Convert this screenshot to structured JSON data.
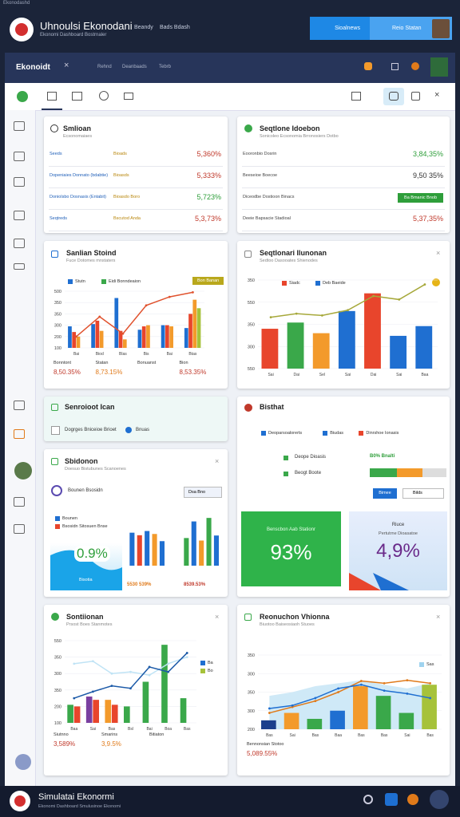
{
  "top": {
    "status": "Ekonodashd",
    "title": "Uhnoulsi Ekonodani",
    "subtitle": "Ekonomi Dashboard Bostrnaler",
    "nav": [
      "Beandy",
      "Bads Bdash"
    ],
    "buttons": [
      "Sioalnews",
      "Reio Statan"
    ]
  },
  "window": {
    "title": "Ekonoidt",
    "tabs": [
      "Rehnd",
      "Deanbaads",
      "Tebrb"
    ]
  },
  "cards": {
    "smlioan": {
      "title": "Smlioan",
      "subtitle": "Ecsonomaiaes",
      "rows": [
        {
          "label": "Seeds",
          "tag": "Bioads",
          "value": "5,360%",
          "color": "#c0392b"
        },
        {
          "label": "Dopeniaies Donnato (bdabtie)",
          "tag": "Bioasds",
          "value": "5,333%",
          "color": "#c0392b"
        },
        {
          "label": "Doniolsbo Dosnasis (Entabit)",
          "tag": "Bioasdo Boro",
          "value": "5,723%",
          "color": "#2e9e3a"
        },
        {
          "label": "Seqtreds",
          "tag": "Bscutod Anda",
          "value": "5,3,73%",
          "color": "#c0392b"
        }
      ]
    },
    "idoebon": {
      "title": "Seqtlone Idoebon",
      "subtitle": "Sonicoleo Ecsonomia Brronosiers Dotbo",
      "rows": [
        {
          "label": "Eooronbio Dosrin",
          "value": "3,84,35%",
          "color": "#2e9e3a"
        },
        {
          "label": "Beeseioe Boecoe",
          "value": "9,50 35%",
          "color": "#333333"
        },
        {
          "label": "Diceodbe Dostioon Binacs",
          "value": "Ba Bmanic Bnob",
          "color": "#ffffff",
          "bg": "#2e9e3a"
        },
        {
          "label": "Deeie Bapsacie Stadioal",
          "value": "5,37,35%",
          "color": "#c0392b"
        }
      ]
    },
    "stoind": {
      "title": "Sanlian Stoind",
      "subtitle": "Fuce Dotomes mnstaters",
      "legend": [
        {
          "name": "Stutn",
          "color": "#1f6fd1"
        },
        {
          "name": "Eidi Bonndeaion",
          "color": "#3aa84a"
        }
      ],
      "badge": "Bon Banan",
      "chart": {
        "ylim": [
          0,
          100
        ],
        "ylabels": [
          "500",
          "350",
          "350",
          "300",
          "200",
          "100"
        ],
        "categories": [
          "Bai",
          "Biod",
          "Blas",
          "Bis",
          "Bai",
          "Btas"
        ],
        "bars": [
          {
            "color": "#1f6fd1",
            "values": [
              38,
              42,
              88,
              32,
              40,
              35
            ]
          },
          {
            "color": "#e8452c",
            "values": [
              28,
              48,
              30,
              38,
              40,
              60
            ]
          },
          {
            "color": "#f39a2b",
            "values": [
              20,
              30,
              15,
              40,
              38,
              85
            ]
          },
          {
            "color": "#a6c23a",
            "values": [
              0,
              0,
              0,
              0,
              0,
              70
            ]
          }
        ],
        "lines": [
          {
            "color": "#e0522e",
            "values": [
              20,
              55,
              25,
              75,
              90,
              98
            ]
          }
        ]
      },
      "footer": [
        {
          "label": "Bonntont",
          "value": "8,50.35%",
          "color": "#c0392b"
        },
        {
          "label": "Statan",
          "value": "8,73.15%",
          "color": "#e07a1a"
        },
        {
          "label": "Bonuanst"
        },
        {
          "label": "Bion",
          "value": "8,53.35%",
          "color": "#c0392b"
        }
      ]
    },
    "ilunonan": {
      "title": "Seqtlonari Ilunonan",
      "subtitle": "Sedtoo Dasooates Shienodes",
      "legend": [
        {
          "name": "Siadc",
          "color": "#e8452c"
        },
        {
          "name": "Deb Baeide",
          "color": "#1f6fd1"
        }
      ],
      "chart": {
        "ylim": [
          0,
          100
        ],
        "ylabels": [
          "350",
          "550",
          "350",
          "300",
          "550"
        ],
        "categories": [
          "Sai",
          "Dai",
          "Sel",
          "Sai",
          "Dai",
          "Sai",
          "Baa"
        ],
        "bars": [
          {
            "colors": [
              "#e8452c",
              "#3aa84a",
              "#f39a2b",
              "#1f6fd1",
              "#e8452c",
              "#1f6fd1",
              "#1f6fd1"
            ],
            "values": [
              45,
              52,
              40,
              65,
              85,
              37,
              48
            ]
          }
        ],
        "lines": [
          {
            "color": "#a6a83a",
            "values": [
              58,
              62,
              60,
              66,
              82,
              78,
              95
            ]
          }
        ]
      }
    },
    "ican": {
      "title": "Senroioot Ican",
      "item": "Dogrges Bniceioe Brioet",
      "tag": "Bnuas"
    },
    "bisthat": {
      "title": "Bisthat",
      "legend": [
        {
          "name": "Deoparsoalorerts",
          "color": "#1f6fd1"
        },
        {
          "name": "Biudas",
          "color": "#1f6fd1"
        },
        {
          "name": "Dinrshoe Ionasis",
          "color": "#e8452c"
        }
      ],
      "rows": [
        {
          "label": "Deope Dioasis",
          "value": "B0% Bnalti"
        },
        {
          "label": "Beogt Boote"
        }
      ],
      "buttons": [
        "Bimee",
        "Bilds"
      ],
      "tiles": [
        {
          "caption": "Benscbon Aab Stationr",
          "value": "93%"
        },
        {
          "heading": "Riuce",
          "caption": "Pertutrne Dioasatoe",
          "value": "4,9%"
        }
      ]
    },
    "sbidonon": {
      "title": "Sbidonon",
      "subtitle": "Doesuo Bistubunes Scanoenes",
      "select": "Dsa Bno",
      "item": "Bounen Bsosidn",
      "legend": [
        {
          "name": "Bounen",
          "color": "#1f6fd1"
        },
        {
          "name": "Bsosidn Sitosuen Bnse",
          "color": "#e8452c"
        }
      ],
      "tile": {
        "value": "0.9%",
        "caption": "Bisotia"
      },
      "mini": [
        {
          "ylim": [
            0,
            100
          ],
          "bars": [
            {
              "colors": [
                "#1f6fd1",
                "#e8452c",
                "#1f6fd1",
                "#f39a2b",
                "#1f6fd1"
              ],
              "values": [
                78,
                72,
                82,
                75,
                58
              ]
            }
          ],
          "label": "5530 539%"
        },
        {
          "ylim": [
            0,
            100
          ],
          "bars": [
            {
              "colors": [
                "#3aa84a",
                "#1f6fd1",
                "#f39a2b",
                "#3aa84a",
                "#1f6fd1"
              ],
              "values": [
                55,
                88,
                50,
                95,
                60
              ]
            }
          ],
          "label": "8539.53%"
        }
      ]
    },
    "sontiionan": {
      "title": "Sontiionan",
      "subtitle": "Prsost Boes Stanmotes",
      "legend": [
        {
          "name": "Ba",
          "color": "#1f6fd1"
        },
        {
          "name": "Bo",
          "color": "#a6c23a"
        }
      ],
      "chart": {
        "ylim": [
          0,
          100
        ],
        "ylabels": [
          "550",
          "350",
          "300",
          "350",
          "200",
          "100"
        ],
        "categories": [
          "Baa",
          "Sai",
          "Bas",
          "Bsl",
          "Bai",
          "Boa",
          "Bas"
        ],
        "bars": [
          {
            "colors": [
              "#3aa84a",
              "#7a3fa0",
              "#f39a2b",
              "#3aa84a",
              "#3aa84a",
              "#3aa84a",
              "#3aa84a"
            ],
            "values": [
              22,
              32,
              28,
              20,
              50,
              95,
              30
            ]
          },
          {
            "colors": [
              "#e8452c",
              "#e8452c",
              "#e8452c",
              "#1f6fd1",
              "#3aa84a",
              "#3aa84a",
              "#3aa84a"
            ],
            "values": [
              20,
              28,
              22,
              0,
              0,
              0,
              0
            ]
          }
        ],
        "lines": [
          {
            "color": "#bfe3f5",
            "values": [
              72,
              75,
              60,
              62,
              58,
              72,
              80
            ]
          },
          {
            "color": "#1c5aa8",
            "values": [
              30,
              38,
              45,
              42,
              68,
              62,
              85
            ]
          }
        ]
      },
      "footer": [
        {
          "label": "Siutnno",
          "value": "3,589%",
          "color": "#c0392b"
        },
        {
          "label": "Smarins",
          "value": "3,9.5%",
          "color": "#e07a1a"
        },
        {
          "label": "Bitiaton"
        }
      ]
    },
    "vhionna": {
      "title": "Reonuchon Vhionna",
      "subtitle": "Biuotoo Baiseosiaoh Stuoes",
      "legend": [
        {
          "name": "Sas",
          "color": "#9fd3ef"
        }
      ],
      "chart": {
        "ylim": [
          0,
          100
        ],
        "ylabels": [
          "350",
          "300",
          "350",
          "300",
          "200"
        ],
        "categories": [
          "Bas",
          "Sai",
          "Bas",
          "Baa",
          "Bas",
          "Bas",
          "Sai",
          "Bas"
        ],
        "area": {
          "color": "#cfe9f7",
          "values": [
            45,
            50,
            58,
            62,
            66,
            60,
            55,
            62
          ]
        },
        "bars": [
          {
            "colors": [
              "#1c3f8c",
              "#f39a2b",
              "#3aa84a",
              "#1f6fd1",
              "#f39a2b",
              "#3aa84a",
              "#3aa84a",
              "#a6c23a"
            ],
            "values": [
              12,
              22,
              14,
              25,
              58,
              45,
              22,
              60
            ]
          }
        ],
        "lines": [
          {
            "color": "#e07a1a",
            "values": [
              22,
              30,
              38,
              50,
              65,
              62,
              66,
              62
            ]
          },
          {
            "color": "#1f6fd1",
            "values": [
              28,
              32,
              42,
              55,
              60,
              52,
              48,
              42
            ]
          }
        ]
      },
      "footer": [
        {
          "label": "Bennonsian Stotoo",
          "value": "5,089.55%",
          "color": "#c0392b"
        }
      ]
    }
  },
  "bottom": {
    "title": "Simulatai Ekonormi",
    "subtitle": "Ekonomi Dashboard Smulusinoe Ekonomi"
  }
}
